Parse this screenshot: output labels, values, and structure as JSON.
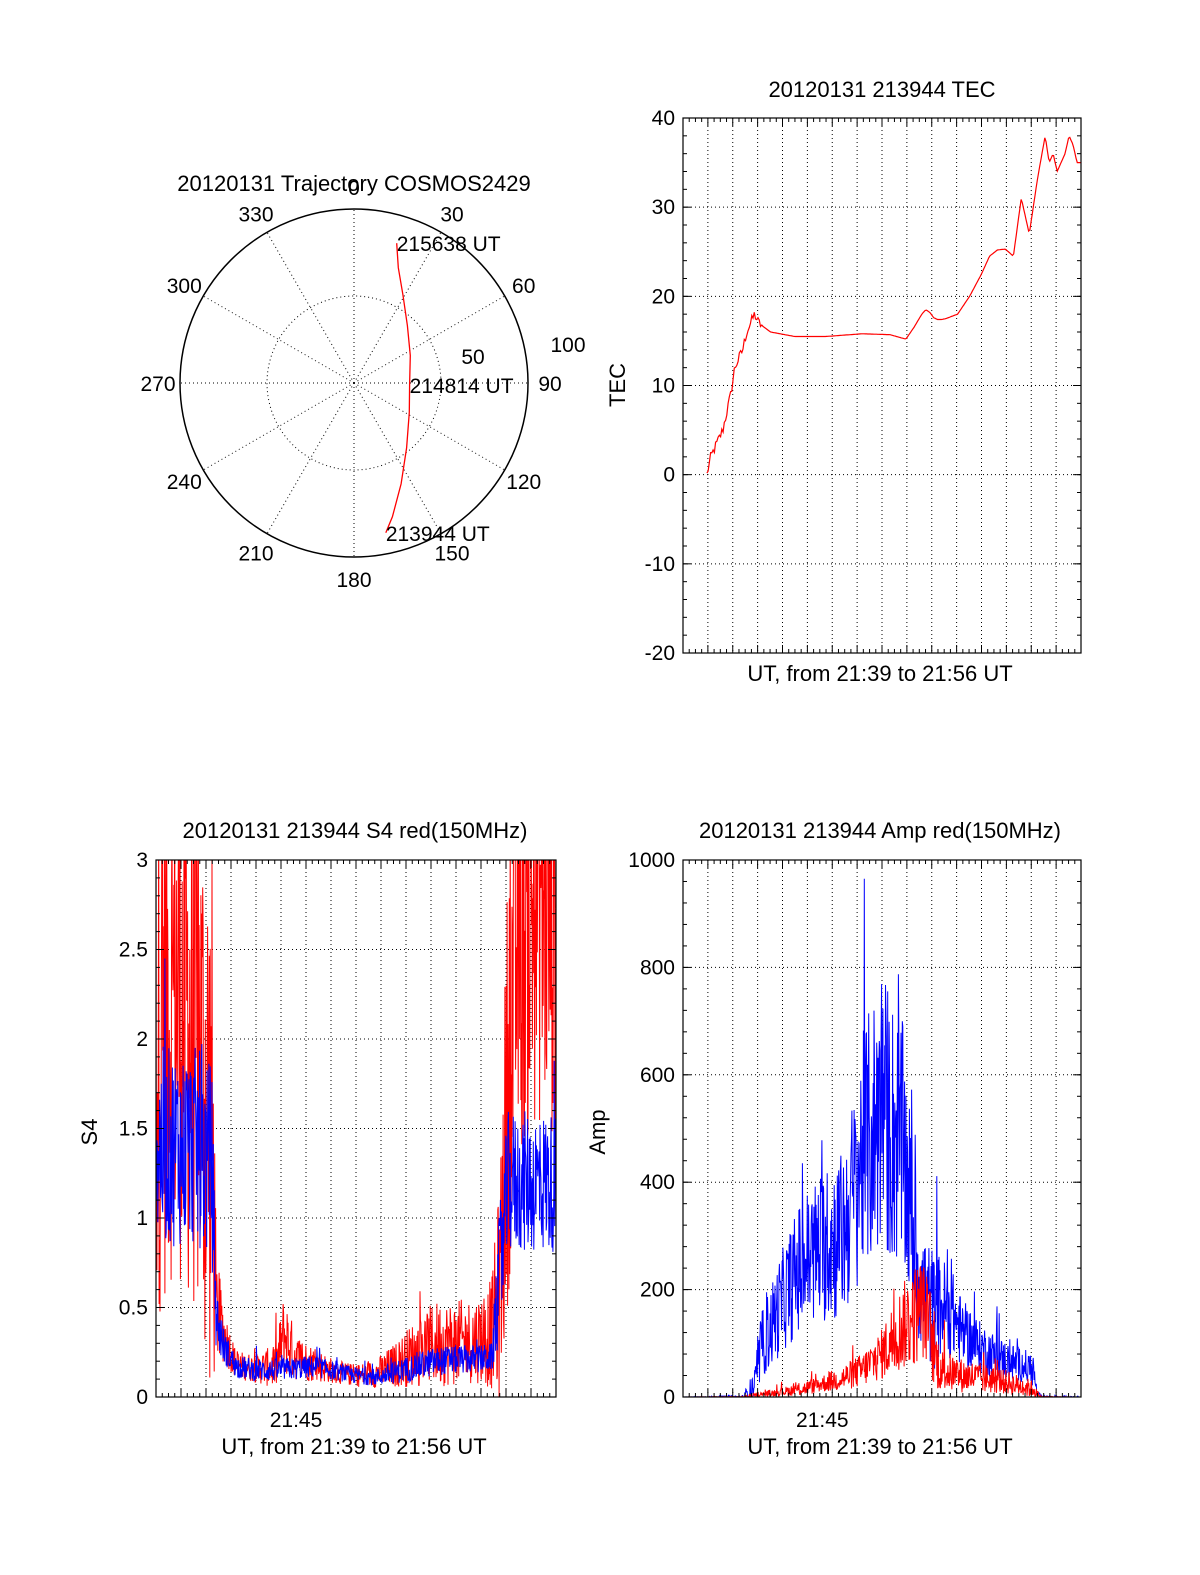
{
  "colors": {
    "red": "#ff0000",
    "blue": "#0000ff",
    "axis": "#000000"
  },
  "chart_data": [
    {
      "id": "polar",
      "type": "scatter",
      "subtype": "polar-sky-trajectory",
      "title": "20120131 Trajectory COSMOS2429",
      "azimuth_labels": [
        "0",
        "30",
        "60",
        "90",
        "120",
        "150",
        "180",
        "210",
        "240",
        "270",
        "300",
        "330"
      ],
      "radial_labels": [
        "50",
        "100"
      ],
      "rlim": [
        0,
        100
      ],
      "points": [
        {
          "az": 17,
          "r": 84
        },
        {
          "az": 21,
          "r": 71
        },
        {
          "az": 29,
          "r": 58
        },
        {
          "az": 43,
          "r": 45
        },
        {
          "az": 64,
          "r": 36
        },
        {
          "az": 92,
          "r": 32
        },
        {
          "az": 118,
          "r": 36
        },
        {
          "az": 141,
          "r": 48
        },
        {
          "az": 155,
          "r": 64
        },
        {
          "az": 164,
          "r": 80
        },
        {
          "az": 168,
          "r": 88
        }
      ],
      "annotations": [
        {
          "text": "215638 UT",
          "az": 17,
          "r": 84
        },
        {
          "text": "214814 UT",
          "az": 92,
          "r": 32
        },
        {
          "text": "213944 UT",
          "az": 168,
          "r": 88
        }
      ]
    },
    {
      "id": "tec",
      "type": "line",
      "title": "20120131 213944 TEC",
      "xlabel": "UT, from 21:39 to 21:56 UT",
      "ylabel": "TEC",
      "ylim": [
        -20,
        40
      ],
      "yticks": [
        "-20",
        "-10",
        "0",
        "10",
        "20",
        "30",
        "40"
      ],
      "xticks": [],
      "grid": true,
      "series": [
        {
          "color": "red",
          "x": [
            0.06,
            0.07,
            0.09,
            0.1,
            0.11,
            0.12,
            0.13,
            0.14,
            0.15,
            0.16,
            0.17,
            0.18,
            0.19,
            0.22,
            0.28,
            0.36,
            0.45,
            0.52,
            0.56,
            0.58,
            0.6,
            0.61,
            0.62,
            0.63,
            0.64,
            0.65,
            0.66,
            0.69,
            0.72,
            0.75,
            0.77,
            0.79,
            0.81,
            0.83,
            0.85,
            0.87,
            0.89,
            0.91,
            0.92,
            0.93,
            0.94,
            0.95,
            0.96,
            0.97,
            0.98,
            0.99,
            1.0
          ],
          "y": [
            0,
            2,
            4,
            5,
            7,
            9,
            12,
            13,
            14,
            16,
            17,
            18,
            17,
            16,
            15.5,
            15.5,
            15.8,
            15.7,
            15.2,
            16.5,
            18,
            18.5,
            18.2,
            17.6,
            17.4,
            17.4,
            17.5,
            18,
            20,
            22.5,
            24.5,
            25.2,
            25.3,
            24.5,
            31,
            27,
            33,
            38,
            35,
            36,
            34,
            35,
            36,
            38,
            37,
            35,
            35
          ]
        }
      ]
    },
    {
      "id": "s4",
      "type": "line",
      "title": "20120131 213944 S4 red(150MHz)",
      "xlabel": "UT, from 21:39 to 21:56 UT",
      "ylabel": "S4",
      "ylim": [
        0,
        3
      ],
      "yticks": [
        "0",
        "0.5",
        "1",
        "1.5",
        "2",
        "2.5",
        "3"
      ],
      "xticks": [
        {
          "label": "21:45",
          "x": 0.35
        }
      ],
      "grid": true,
      "series": [
        {
          "color": "red",
          "kind": "noisy",
          "x": [
            0.0,
            0.05,
            0.1,
            0.14,
            0.15,
            0.17,
            0.2,
            0.25,
            0.3,
            0.32,
            0.35,
            0.4,
            0.45,
            0.5,
            0.55,
            0.6,
            0.65,
            0.7,
            0.75,
            0.8,
            0.84,
            0.86,
            0.88,
            0.9,
            0.95,
            1.0
          ],
          "y": [
            2.0,
            2.3,
            2.0,
            1.5,
            0.5,
            0.35,
            0.18,
            0.16,
            0.17,
            0.35,
            0.22,
            0.18,
            0.14,
            0.12,
            0.13,
            0.18,
            0.25,
            0.3,
            0.3,
            0.32,
            0.36,
            0.6,
            1.8,
            2.5,
            2.8,
            2.7
          ],
          "noise": [
            1.0,
            1.0,
            1.0,
            1.0,
            0.2,
            0.1,
            0.05,
            0.05,
            0.08,
            0.15,
            0.08,
            0.06,
            0.04,
            0.04,
            0.05,
            0.08,
            0.12,
            0.15,
            0.15,
            0.15,
            0.2,
            0.4,
            0.8,
            0.8,
            0.8,
            0.8
          ]
        },
        {
          "color": "blue",
          "kind": "noisy",
          "x": [
            0.0,
            0.05,
            0.1,
            0.14,
            0.15,
            0.17,
            0.2,
            0.25,
            0.3,
            0.35,
            0.4,
            0.45,
            0.5,
            0.55,
            0.6,
            0.65,
            0.7,
            0.75,
            0.8,
            0.84,
            0.86,
            0.88,
            0.9,
            0.95,
            1.0
          ],
          "y": [
            1.4,
            1.4,
            1.4,
            1.3,
            0.45,
            0.28,
            0.17,
            0.15,
            0.15,
            0.16,
            0.17,
            0.14,
            0.12,
            0.11,
            0.14,
            0.17,
            0.2,
            0.21,
            0.21,
            0.22,
            0.7,
            1.2,
            1.2,
            1.2,
            1.2
          ],
          "noise": [
            0.35,
            0.35,
            0.35,
            0.35,
            0.12,
            0.06,
            0.04,
            0.04,
            0.04,
            0.04,
            0.04,
            0.03,
            0.03,
            0.03,
            0.04,
            0.05,
            0.05,
            0.05,
            0.05,
            0.05,
            0.25,
            0.25,
            0.25,
            0.25,
            0.25
          ]
        }
      ]
    },
    {
      "id": "amp",
      "type": "line",
      "title": "20120131 213944 Amp red(150MHz)",
      "xlabel": "UT, from 21:39 to 21:56 UT",
      "ylabel": "Amp",
      "ylim": [
        0,
        1000
      ],
      "yticks": [
        "0",
        "200",
        "400",
        "600",
        "800",
        "1000"
      ],
      "xticks": [
        {
          "label": "21:45",
          "x": 0.35
        }
      ],
      "grid": true,
      "series": [
        {
          "color": "blue",
          "kind": "noisy",
          "x": [
            0.0,
            0.15,
            0.18,
            0.2,
            0.22,
            0.25,
            0.3,
            0.35,
            0.4,
            0.43,
            0.45,
            0.48,
            0.5,
            0.52,
            0.55,
            0.58,
            0.6,
            0.63,
            0.65,
            0.68,
            0.7,
            0.75,
            0.8,
            0.85,
            0.88,
            0.89,
            0.9,
            1.0
          ],
          "y": [
            0,
            0,
            20,
            100,
            130,
            180,
            250,
            280,
            300,
            380,
            450,
            500,
            550,
            500,
            470,
            300,
            200,
            160,
            170,
            150,
            120,
            90,
            70,
            60,
            50,
            5,
            0,
            0
          ],
          "noise": [
            0,
            2,
            20,
            40,
            50,
            60,
            80,
            90,
            100,
            120,
            140,
            160,
            170,
            160,
            150,
            100,
            80,
            70,
            60,
            50,
            40,
            30,
            25,
            20,
            20,
            5,
            2,
            1
          ]
        },
        {
          "color": "red",
          "kind": "noisy",
          "x": [
            0.0,
            0.15,
            0.2,
            0.25,
            0.3,
            0.35,
            0.4,
            0.45,
            0.5,
            0.52,
            0.55,
            0.58,
            0.6,
            0.62,
            0.63,
            0.65,
            0.7,
            0.75,
            0.8,
            0.85,
            0.88,
            0.89,
            0.9,
            1.0
          ],
          "y": [
            0,
            0,
            5,
            10,
            15,
            25,
            35,
            50,
            80,
            100,
            130,
            150,
            170,
            130,
            80,
            50,
            40,
            35,
            30,
            20,
            15,
            5,
            0,
            0
          ],
          "noise": [
            0,
            1,
            3,
            5,
            8,
            10,
            15,
            20,
            30,
            40,
            50,
            60,
            60,
            50,
            40,
            25,
            20,
            18,
            15,
            12,
            10,
            5,
            1,
            0
          ]
        }
      ]
    }
  ]
}
